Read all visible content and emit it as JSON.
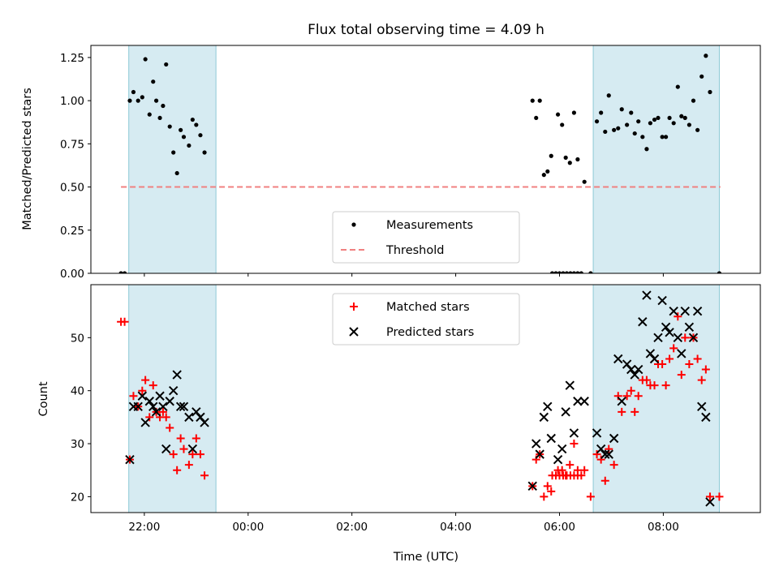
{
  "chart_data": [
    {
      "type": "scatter",
      "title": "Flux total observing time = 4.09 h",
      "xlabel": "",
      "ylabel": "Matched/Predicted stars",
      "xlim": [
        20.97,
        33.87
      ],
      "ylim": [
        0.0,
        1.32
      ],
      "yticks": [
        0.0,
        0.25,
        0.5,
        0.75,
        1.0,
        1.25
      ],
      "ytick_labels": [
        "0.00",
        "0.25",
        "0.50",
        "0.75",
        "1.00",
        "1.25"
      ],
      "x_unit": "hours UTC from the start of the first day (24+ = next day)",
      "shaded_intervals": [
        [
          21.7,
          23.38
        ],
        [
          30.65,
          33.08
        ]
      ],
      "threshold": {
        "value": 0.5,
        "x": [
          21.55,
          33.1
        ],
        "label": "Threshold",
        "color": "#f08080"
      },
      "legend_position": "lower center",
      "series": [
        {
          "name": "Measurements",
          "marker": "dot",
          "color": "#000000",
          "points": [
            [
              21.55,
              0.0
            ],
            [
              21.62,
              0.0
            ],
            [
              21.72,
              1.0
            ],
            [
              21.79,
              1.05
            ],
            [
              21.88,
              1.0
            ],
            [
              21.96,
              1.02
            ],
            [
              22.02,
              1.24
            ],
            [
              22.1,
              0.92
            ],
            [
              22.17,
              1.11
            ],
            [
              22.23,
              1.0
            ],
            [
              22.3,
              0.9
            ],
            [
              22.36,
              0.97
            ],
            [
              22.42,
              1.21
            ],
            [
              22.49,
              0.85
            ],
            [
              22.56,
              0.7
            ],
            [
              22.63,
              0.58
            ],
            [
              22.7,
              0.83
            ],
            [
              22.76,
              0.79
            ],
            [
              22.86,
              0.74
            ],
            [
              22.93,
              0.89
            ],
            [
              23.0,
              0.86
            ],
            [
              23.08,
              0.8
            ],
            [
              23.16,
              0.7
            ],
            [
              29.86,
              0.0
            ],
            [
              29.93,
              0.0
            ],
            [
              30.0,
              0.0
            ],
            [
              30.07,
              0.0
            ],
            [
              30.14,
              0.0
            ],
            [
              30.21,
              0.0
            ],
            [
              30.28,
              0.0
            ],
            [
              30.35,
              0.0
            ],
            [
              30.42,
              0.0
            ],
            [
              29.48,
              1.0
            ],
            [
              29.55,
              0.9
            ],
            [
              29.62,
              1.0
            ],
            [
              29.7,
              0.57
            ],
            [
              29.77,
              0.59
            ],
            [
              29.84,
              0.68
            ],
            [
              29.97,
              0.92
            ],
            [
              30.05,
              0.86
            ],
            [
              30.12,
              0.67
            ],
            [
              30.2,
              0.64
            ],
            [
              30.28,
              0.93
            ],
            [
              30.35,
              0.66
            ],
            [
              30.48,
              0.53
            ],
            [
              30.6,
              0.0
            ],
            [
              30.72,
              0.88
            ],
            [
              30.8,
              0.93
            ],
            [
              30.88,
              0.82
            ],
            [
              30.95,
              1.03
            ],
            [
              31.05,
              0.83
            ],
            [
              31.13,
              0.84
            ],
            [
              31.2,
              0.95
            ],
            [
              31.3,
              0.86
            ],
            [
              31.38,
              0.93
            ],
            [
              31.45,
              0.81
            ],
            [
              31.52,
              0.88
            ],
            [
              31.6,
              0.79
            ],
            [
              31.68,
              0.72
            ],
            [
              31.75,
              0.87
            ],
            [
              31.83,
              0.89
            ],
            [
              31.9,
              0.9
            ],
            [
              31.98,
              0.79
            ],
            [
              32.05,
              0.79
            ],
            [
              32.12,
              0.9
            ],
            [
              32.2,
              0.87
            ],
            [
              32.28,
              1.08
            ],
            [
              32.35,
              0.91
            ],
            [
              32.42,
              0.9
            ],
            [
              32.5,
              0.86
            ],
            [
              32.58,
              1.0
            ],
            [
              32.66,
              0.83
            ],
            [
              32.74,
              1.14
            ],
            [
              32.82,
              1.26
            ],
            [
              32.9,
              1.05
            ],
            [
              33.08,
              0.0
            ]
          ]
        }
      ],
      "legend": [
        {
          "label": "Measurements",
          "marker": "dot"
        },
        {
          "label": "Threshold",
          "marker": "dashed-line"
        }
      ]
    },
    {
      "type": "scatter",
      "title": "",
      "xlabel": "Time (UTC)",
      "ylabel": "Count",
      "xlim": [
        20.97,
        33.87
      ],
      "ylim": [
        17.0,
        60.0
      ],
      "yticks": [
        20,
        30,
        40,
        50
      ],
      "ytick_labels": [
        "20",
        "30",
        "40",
        "50"
      ],
      "xticks": [
        22,
        24,
        26,
        28,
        30,
        32
      ],
      "xtick_labels": [
        "22:00",
        "00:00",
        "02:00",
        "04:00",
        "06:00",
        "08:00"
      ],
      "x_unit": "hours UTC from the start of the first day (24+ = next day)",
      "shaded_intervals": [
        [
          21.7,
          23.38
        ],
        [
          30.65,
          33.08
        ]
      ],
      "legend_position": "upper center",
      "series": [
        {
          "name": "Matched stars",
          "marker": "plus",
          "color": "#ff0000",
          "points": [
            [
              21.55,
              53
            ],
            [
              21.62,
              53
            ],
            [
              21.72,
              27
            ],
            [
              21.79,
              39
            ],
            [
              21.88,
              37
            ],
            [
              21.96,
              40
            ],
            [
              22.02,
              42
            ],
            [
              22.1,
              35
            ],
            [
              22.17,
              41
            ],
            [
              22.23,
              36
            ],
            [
              22.3,
              35
            ],
            [
              22.36,
              36
            ],
            [
              22.42,
              35
            ],
            [
              22.49,
              33
            ],
            [
              22.56,
              28
            ],
            [
              22.63,
              25
            ],
            [
              22.7,
              31
            ],
            [
              22.76,
              29
            ],
            [
              22.86,
              26
            ],
            [
              22.93,
              28
            ],
            [
              23.0,
              31
            ],
            [
              23.08,
              28
            ],
            [
              23.16,
              24
            ],
            [
              29.86,
              24
            ],
            [
              29.93,
              24
            ],
            [
              30.0,
              24
            ],
            [
              30.07,
              24
            ],
            [
              30.14,
              24
            ],
            [
              30.21,
              24
            ],
            [
              30.28,
              24
            ],
            [
              30.35,
              24
            ],
            [
              30.42,
              24
            ],
            [
              29.48,
              22
            ],
            [
              29.55,
              27
            ],
            [
              29.62,
              28
            ],
            [
              29.7,
              20
            ],
            [
              29.77,
              22
            ],
            [
              29.84,
              21
            ],
            [
              29.97,
              25
            ],
            [
              30.05,
              25
            ],
            [
              30.12,
              24
            ],
            [
              30.2,
              26
            ],
            [
              30.28,
              30
            ],
            [
              30.35,
              25
            ],
            [
              30.48,
              25
            ],
            [
              30.6,
              20
            ],
            [
              30.72,
              28
            ],
            [
              30.8,
              27
            ],
            [
              30.88,
              23
            ],
            [
              30.95,
              29
            ],
            [
              31.05,
              26
            ],
            [
              31.13,
              39
            ],
            [
              31.2,
              36
            ],
            [
              31.3,
              39
            ],
            [
              31.38,
              40
            ],
            [
              31.45,
              36
            ],
            [
              31.52,
              39
            ],
            [
              31.6,
              42
            ],
            [
              31.68,
              42
            ],
            [
              31.75,
              41
            ],
            [
              31.83,
              41
            ],
            [
              31.9,
              45
            ],
            [
              31.98,
              45
            ],
            [
              32.05,
              41
            ],
            [
              32.12,
              46
            ],
            [
              32.2,
              48
            ],
            [
              32.28,
              54
            ],
            [
              32.35,
              43
            ],
            [
              32.42,
              50
            ],
            [
              32.5,
              45
            ],
            [
              32.58,
              50
            ],
            [
              32.66,
              46
            ],
            [
              32.74,
              42
            ],
            [
              32.82,
              44
            ],
            [
              32.9,
              20
            ],
            [
              33.08,
              20
            ]
          ]
        },
        {
          "name": "Predicted stars",
          "marker": "x",
          "color": "#000000",
          "points": [
            [
              21.72,
              27
            ],
            [
              21.79,
              37
            ],
            [
              21.88,
              37
            ],
            [
              21.96,
              39
            ],
            [
              22.02,
              34
            ],
            [
              22.1,
              38
            ],
            [
              22.17,
              37
            ],
            [
              22.23,
              36
            ],
            [
              22.3,
              39
            ],
            [
              22.36,
              37
            ],
            [
              22.42,
              29
            ],
            [
              22.49,
              38
            ],
            [
              22.56,
              40
            ],
            [
              22.63,
              43
            ],
            [
              22.7,
              37
            ],
            [
              22.76,
              37
            ],
            [
              22.86,
              35
            ],
            [
              22.93,
              29
            ],
            [
              23.0,
              36
            ],
            [
              23.08,
              35
            ],
            [
              23.16,
              34
            ],
            [
              29.48,
              22
            ],
            [
              29.55,
              30
            ],
            [
              29.62,
              28
            ],
            [
              29.7,
              35
            ],
            [
              29.77,
              37
            ],
            [
              29.84,
              31
            ],
            [
              29.97,
              27
            ],
            [
              30.05,
              29
            ],
            [
              30.12,
              36
            ],
            [
              30.2,
              41
            ],
            [
              30.28,
              32
            ],
            [
              30.35,
              38
            ],
            [
              30.48,
              38
            ],
            [
              30.72,
              32
            ],
            [
              30.8,
              29
            ],
            [
              30.88,
              28
            ],
            [
              30.95,
              28
            ],
            [
              31.05,
              31
            ],
            [
              31.13,
              46
            ],
            [
              31.2,
              38
            ],
            [
              31.3,
              45
            ],
            [
              31.38,
              44
            ],
            [
              31.45,
              43
            ],
            [
              31.52,
              44
            ],
            [
              31.6,
              53
            ],
            [
              31.68,
              58
            ],
            [
              31.75,
              47
            ],
            [
              31.83,
              46
            ],
            [
              31.9,
              50
            ],
            [
              31.98,
              57
            ],
            [
              32.05,
              52
            ],
            [
              32.12,
              51
            ],
            [
              32.2,
              55
            ],
            [
              32.28,
              50
            ],
            [
              32.35,
              47
            ],
            [
              32.42,
              55
            ],
            [
              32.5,
              52
            ],
            [
              32.58,
              50
            ],
            [
              32.66,
              55
            ],
            [
              32.74,
              37
            ],
            [
              32.82,
              35
            ],
            [
              32.9,
              19
            ]
          ]
        }
      ],
      "legend": [
        {
          "label": "Matched stars",
          "marker": "plus"
        },
        {
          "label": "Predicted stars",
          "marker": "x"
        }
      ]
    }
  ]
}
